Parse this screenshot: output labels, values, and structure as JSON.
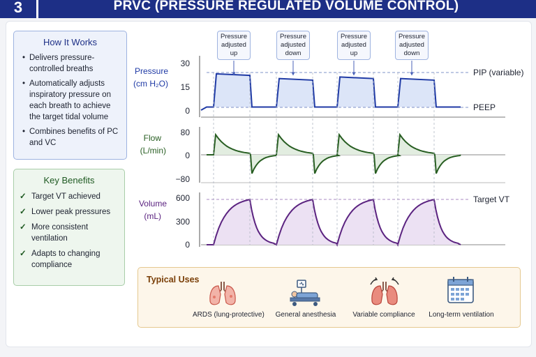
{
  "header": {
    "number": "3",
    "title": "PRVC (PRESSURE REGULATED VOLUME CONTROL)"
  },
  "how_it_works": {
    "title": "How It Works",
    "items": [
      "Delivers pressure-controlled breaths",
      "Automatically adjusts inspiratory pressure on each breath to achieve the target tidal volume",
      "Combines benefits of PC and VC"
    ]
  },
  "key_benefits": {
    "title": "Key Benefits",
    "check_icon": "check-icon",
    "items": [
      "Target VT achieved",
      "Lower peak pressures",
      "More consistent ventilation",
      "Adapts to changing compliance"
    ]
  },
  "callouts": [
    {
      "line1": "Pressure",
      "line2": "adjusted",
      "line3": "up"
    },
    {
      "line1": "Pressure",
      "line2": "adjusted",
      "line3": "down"
    },
    {
      "line1": "Pressure",
      "line2": "adjusted",
      "line3": "up"
    },
    {
      "line1": "Pressure",
      "line2": "adjusted",
      "line3": "down"
    }
  ],
  "chart_data": {
    "type": "line",
    "x": "breath cycle (time)",
    "panels": [
      {
        "name": "pressure",
        "ylabel_line1": "Pressure",
        "ylabel_line2": "(cm H₂O)",
        "ticks": [
          "30",
          "15",
          "0"
        ],
        "ylim": [
          0,
          30
        ],
        "right_labels": [
          "PIP (variable)",
          "PEEP"
        ],
        "breath_peaks": [
          23,
          20,
          21,
          20
        ],
        "baseline": 2,
        "color": "#1f3aa5"
      },
      {
        "name": "flow",
        "ylabel_line1": "Flow",
        "ylabel_line2": "(L/min)",
        "ticks": [
          "80",
          "0",
          "−80"
        ],
        "ylim": [
          -80,
          80
        ],
        "insp_peak": 70,
        "exp_peak": -65,
        "color": "#285e22"
      },
      {
        "name": "volume",
        "ylabel_line1": "Volume",
        "ylabel_line2": "(mL)",
        "ticks": [
          "600",
          "300",
          "0"
        ],
        "ylim": [
          0,
          600
        ],
        "right_label": "Target VT",
        "breath_peaks": [
          580,
          580,
          580,
          580
        ],
        "color": "#5b2380"
      }
    ]
  },
  "typical_uses": {
    "title": "Typical Uses",
    "items": [
      {
        "label": "ARDS (lung-protective)",
        "icon": "lungs-icon"
      },
      {
        "label": "General anesthesia",
        "icon": "patient-bed-icon"
      },
      {
        "label": "Variable compliance",
        "icon": "lungs-arrows-icon"
      },
      {
        "label": "Long-term ventilation",
        "icon": "calendar-icon"
      }
    ]
  }
}
